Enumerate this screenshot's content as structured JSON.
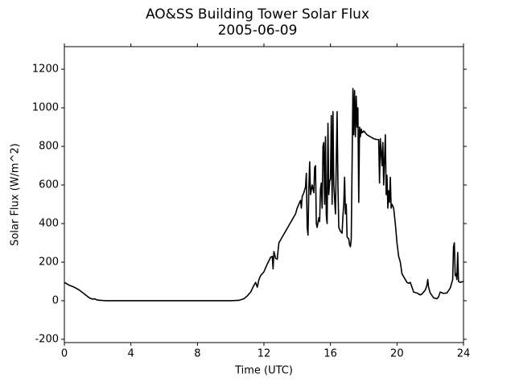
{
  "chart_data": {
    "type": "line",
    "title": "AO&SS Building Tower Solar Flux",
    "subtitle": "2005-06-09",
    "x_label": "Time (UTC)",
    "y_label": "Solar Flux (W/m^2)",
    "xlim": [
      0,
      24
    ],
    "xticks": [
      0,
      4,
      8,
      12,
      16,
      20,
      24
    ],
    "ylim": [
      -217,
      1317
    ],
    "yticks": [
      -200,
      0,
      200,
      400,
      600,
      800,
      1000,
      1200
    ],
    "grid": false,
    "series": [
      {
        "color": "#000000",
        "x": [
          0,
          0.3,
          0.6,
          0.9,
          1.2,
          1.5,
          1.7,
          1.8,
          2.0,
          2.5,
          4,
          6,
          8,
          10,
          10.5,
          10.8,
          11.0,
          11.2,
          11.4,
          11.5,
          11.6,
          11.7,
          11.8,
          12.0,
          12.2,
          12.4,
          12.5,
          12.55,
          12.6,
          12.7,
          12.8,
          12.85,
          12.9,
          13.1,
          13.3,
          13.5,
          13.7,
          13.9,
          14.0,
          14.1,
          14.2,
          14.25,
          14.3,
          14.4,
          14.5,
          14.55,
          14.6,
          14.65,
          14.7,
          14.75,
          14.8,
          14.9,
          15.0,
          15.05,
          15.1,
          15.15,
          15.2,
          15.3,
          15.35,
          15.4,
          15.45,
          15.5,
          15.55,
          15.6,
          15.65,
          15.7,
          15.75,
          15.8,
          15.85,
          15.9,
          15.95,
          16.0,
          16.05,
          16.1,
          16.15,
          16.2,
          16.3,
          16.35,
          16.4,
          16.45,
          16.5,
          16.6,
          16.7,
          16.75,
          16.8,
          16.85,
          16.9,
          16.95,
          17.0,
          17.1,
          17.15,
          17.2,
          17.25,
          17.3,
          17.35,
          17.4,
          17.45,
          17.5,
          17.55,
          17.6,
          17.65,
          17.7,
          17.75,
          17.8,
          17.85,
          17.9,
          18.0,
          18.2,
          18.4,
          18.6,
          18.8,
          18.9,
          18.95,
          19.0,
          19.1,
          19.15,
          19.2,
          19.3,
          19.35,
          19.4,
          19.45,
          19.5,
          19.55,
          19.6,
          19.65,
          19.7,
          19.8,
          19.9,
          20.0,
          20.1,
          20.2,
          20.3,
          20.5,
          20.6,
          20.7,
          20.8,
          20.9,
          21.0,
          21.2,
          21.4,
          21.5,
          21.7,
          21.8,
          21.85,
          21.9,
          22.0,
          22.2,
          22.4,
          22.5,
          22.6,
          22.8,
          23.0,
          23.2,
          23.35,
          23.4,
          23.45,
          23.5,
          23.55,
          23.6,
          23.65,
          23.7,
          23.8,
          24.0
        ],
        "values": [
          95,
          80,
          70,
          55,
          35,
          15,
          8,
          10,
          3,
          0,
          0,
          0,
          0,
          0,
          2,
          10,
          25,
          45,
          80,
          95,
          70,
          110,
          130,
          150,
          190,
          225,
          230,
          165,
          255,
          220,
          215,
          260,
          300,
          330,
          360,
          390,
          420,
          450,
          480,
          500,
          520,
          480,
          540,
          560,
          590,
          660,
          380,
          340,
          580,
          720,
          550,
          600,
          560,
          690,
          700,
          400,
          380,
          430,
          410,
          580,
          610,
          480,
          800,
          820,
          500,
          850,
          440,
          400,
          920,
          550,
          620,
          630,
          960,
          500,
          980,
          600,
          450,
          720,
          980,
          600,
          380,
          360,
          350,
          440,
          500,
          640,
          450,
          500,
          330,
          320,
          290,
          280,
          320,
          700,
          1100,
          860,
          1090,
          850,
          1060,
          900,
          1000,
          510,
          900,
          850,
          890,
          870,
          880,
          860,
          850,
          840,
          835,
          835,
          610,
          840,
          700,
          820,
          600,
          860,
          550,
          650,
          480,
          570,
          510,
          640,
          480,
          500,
          480,
          400,
          300,
          230,
          200,
          140,
          110,
          95,
          90,
          95,
          70,
          45,
          40,
          30,
          35,
          55,
          80,
          110,
          70,
          40,
          15,
          10,
          20,
          45,
          38,
          40,
          65,
          110,
          280,
          300,
          130,
          140,
          110,
          250,
          100,
          95,
          100
        ]
      }
    ]
  }
}
